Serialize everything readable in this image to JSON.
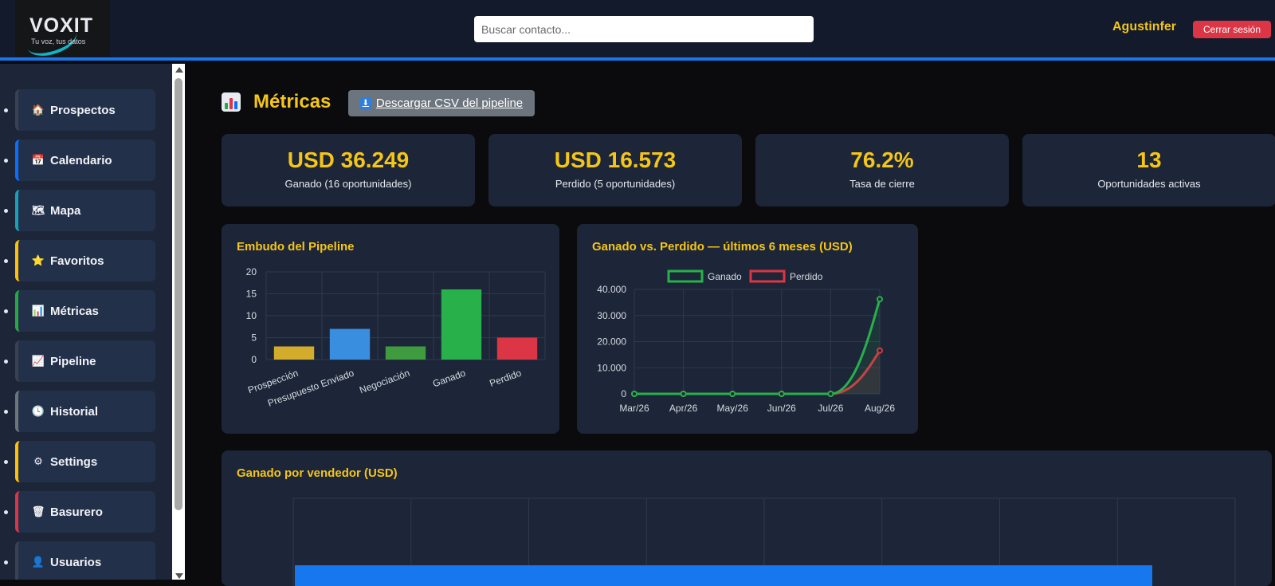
{
  "header": {
    "logo_text": "VOXIT",
    "logo_tagline": "Tu voz, tus datos",
    "search_placeholder": "Buscar contacto...",
    "username": "Agustinfer",
    "logout_label": "Cerrar sesión"
  },
  "sidebar": {
    "items": [
      {
        "label": "Prospectos",
        "icon": "house-icon",
        "glyph": "🏠",
        "color": "#3a4150"
      },
      {
        "label": "Calendario",
        "icon": "calendar-icon",
        "glyph": "📅",
        "color": "#0d6efd"
      },
      {
        "label": "Mapa",
        "icon": "map-icon",
        "glyph": "🗺",
        "color": "#17a2b8"
      },
      {
        "label": "Favoritos",
        "icon": "star-icon",
        "glyph": "⭐",
        "color": "#ffc107"
      },
      {
        "label": "Métricas",
        "icon": "bar-chart-icon",
        "glyph": "📊",
        "color": "#28a745"
      },
      {
        "label": "Pipeline",
        "icon": "trend-chart-icon",
        "glyph": "📈",
        "color": "#3a4150"
      },
      {
        "label": "Historial",
        "icon": "clock-icon",
        "glyph": "🕓",
        "color": "#6c757d"
      },
      {
        "label": "Settings",
        "icon": "gear-icon",
        "glyph": "⚙",
        "color": "#ffc107"
      },
      {
        "label": "Basurero",
        "icon": "trash-icon",
        "glyph": "🗑",
        "color": "#dc3545"
      },
      {
        "label": "Usuarios",
        "icon": "user-icon",
        "glyph": "👤",
        "color": "#3a4150"
      }
    ]
  },
  "main": {
    "title": "Métricas",
    "csv_button": "Descargar CSV del pipeline",
    "kpis": [
      {
        "value": "USD 36.249",
        "label": "Ganado (16 oportunidades)"
      },
      {
        "value": "USD 16.573",
        "label": "Perdido (5 oportunidades)"
      },
      {
        "value": "76.2%",
        "label": "Tasa de cierre"
      },
      {
        "value": "13",
        "label": "Oportunidades activas"
      }
    ]
  },
  "chart_data": [
    {
      "type": "bar",
      "title": "Embudo del Pipeline",
      "categories": [
        "Prospección",
        "Presupuesto Enviado",
        "Negociación",
        "Ganado",
        "Perdido"
      ],
      "values": [
        3,
        7,
        3,
        16,
        5
      ],
      "colors": [
        "#d4ac2b",
        "#3a8ee0",
        "#3e9b3e",
        "#28b04a",
        "#dc3545"
      ],
      "ylim": [
        0,
        20
      ],
      "yticks": [
        "0",
        "5",
        "10",
        "15",
        "20"
      ],
      "grid": true,
      "legend": "none"
    },
    {
      "type": "line",
      "title": "Ganado vs. Perdido — últimos 6 meses (USD)",
      "x": [
        "Mar/26",
        "Apr/26",
        "May/26",
        "Jun/26",
        "Jul/26",
        "Aug/26"
      ],
      "series": [
        {
          "name": "Ganado",
          "values": [
            0,
            0,
            0,
            0,
            0,
            36249
          ],
          "color": "#28b04a"
        },
        {
          "name": "Perdido",
          "values": [
            0,
            0,
            0,
            0,
            0,
            16573
          ],
          "color": "#dc3545"
        }
      ],
      "ylim": [
        0,
        40000
      ],
      "yticks": [
        "0",
        "10.000",
        "20.000",
        "30.000",
        "40.000"
      ],
      "grid": true,
      "legend": "top"
    },
    {
      "type": "bar",
      "title": "Ganado por vendedor (USD)",
      "orientation": "horizontal",
      "color": "#1677ee",
      "grid": true
    }
  ]
}
